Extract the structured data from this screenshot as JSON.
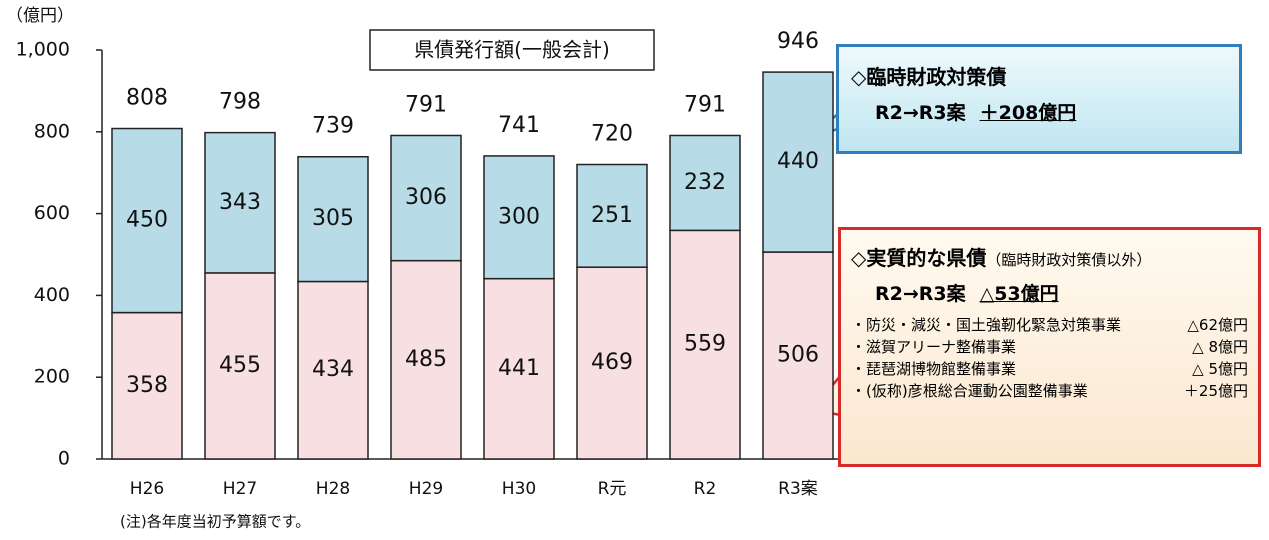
{
  "chart_data": {
    "type": "stacked_bar",
    "title": "県債発行額(一般会計)",
    "unit_label": "（億円）",
    "note": "(注)各年度当初予算額です。",
    "categories": [
      "H26",
      "H27",
      "H28",
      "H29",
      "H30",
      "R元",
      "R2",
      "R3案"
    ],
    "series": [
      {
        "color": "#f8dfe2",
        "values": [
          358,
          455,
          434,
          485,
          441,
          469,
          559,
          506
        ]
      },
      {
        "color": "#b7dce8",
        "values": [
          450,
          343,
          305,
          306,
          300,
          251,
          232,
          440
        ]
      }
    ],
    "totals": [
      808,
      798,
      739,
      791,
      741,
      720,
      791,
      946
    ],
    "ylim": [
      0,
      1000
    ],
    "yticks": [
      0,
      200,
      400,
      600,
      800,
      {
        "value": 1000,
        "label": "1,000"
      }
    ],
    "callouts": [
      {
        "heading": "◇臨時財政対策債",
        "change_label": "R2→R3案",
        "change": "＋208億円"
      },
      {
        "heading": "◇実質的な県債",
        "subheading": "（臨時財政対策債以外）",
        "change_label": "R2→R3案",
        "change": "△53億円",
        "items": [
          {
            "name": "・防災・減災・国土強靭化緊急対策事業",
            "amount": "△62億円"
          },
          {
            "name": "・滋賀アリーナ整備事業",
            "amount": "△ 8億円"
          },
          {
            "name": "・琵琶湖博物館整備事業",
            "amount": "△ 5億円"
          },
          {
            "name": "・(仮称)彦根総合運動公園整備事業",
            "amount": "＋25億円"
          }
        ]
      }
    ]
  }
}
